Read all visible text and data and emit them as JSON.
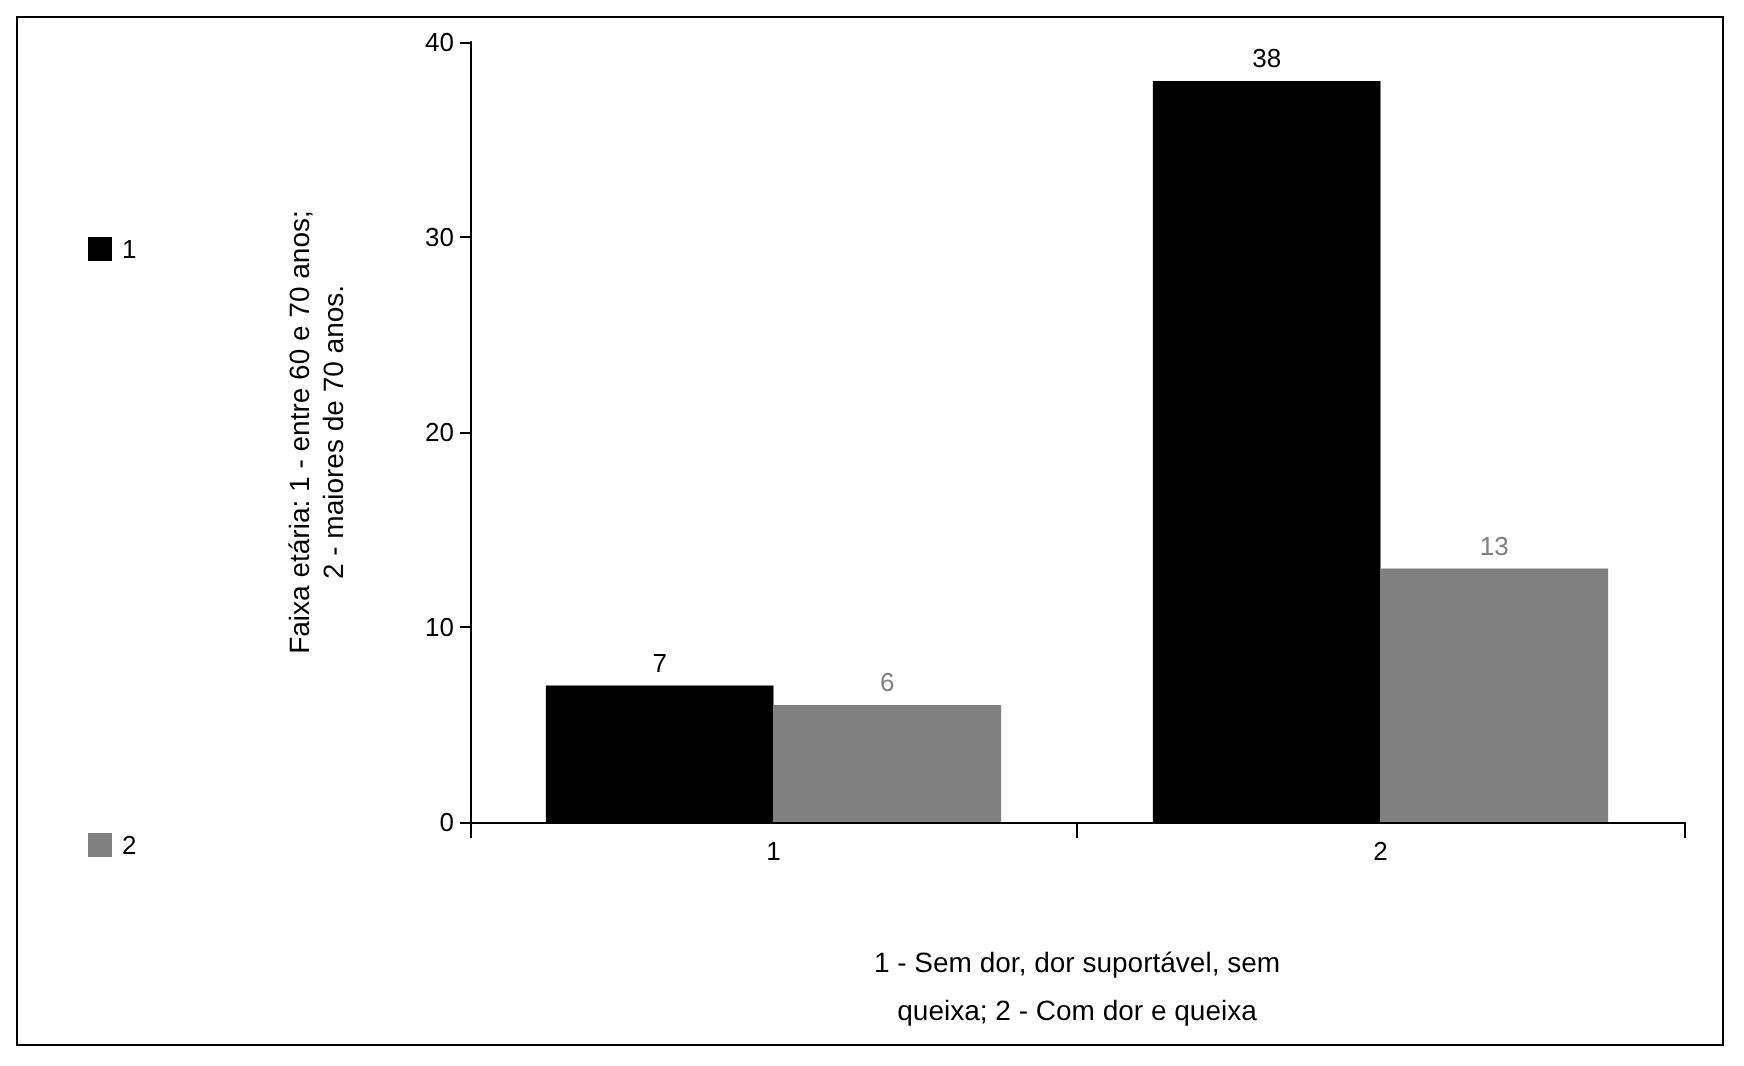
{
  "chart_data": {
    "type": "bar",
    "xlabel": "1 - Sem dor, dor suportável, sem queixa; 2 - Com dor e queixa",
    "ylabel": "Faixa etária: 1 - entre 60 e 70 anos; 2 - maiores de 70 anos.",
    "categories": [
      "1",
      "2"
    ],
    "series": [
      {
        "name": "1",
        "color": "#000000",
        "values": [
          7,
          38
        ]
      },
      {
        "name": "2",
        "color": "#808080",
        "values": [
          6,
          13
        ]
      }
    ],
    "ylim": [
      0,
      40
    ],
    "yticks": [
      0,
      10,
      20,
      30,
      40
    ],
    "grid": false,
    "legend": "left",
    "data_labels": true
  }
}
